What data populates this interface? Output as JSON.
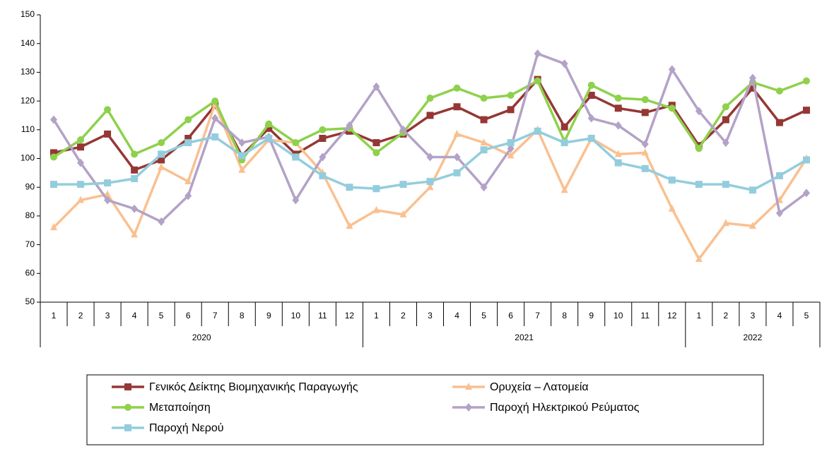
{
  "chart_data": {
    "type": "line",
    "category_groups": [
      {
        "label": "2020",
        "categories": [
          "1",
          "2",
          "3",
          "4",
          "5",
          "6",
          "7",
          "8",
          "9",
          "10",
          "11",
          "12"
        ]
      },
      {
        "label": "2021",
        "categories": [
          "1",
          "2",
          "3",
          "4",
          "5",
          "6",
          "7",
          "8",
          "9",
          "10",
          "11",
          "12"
        ]
      },
      {
        "label": "2022",
        "categories": [
          "1",
          "2",
          "3",
          "4",
          "5"
        ]
      }
    ],
    "ylim": [
      50,
      150
    ],
    "yticks": [
      50,
      60,
      70,
      80,
      90,
      100,
      110,
      120,
      130,
      140,
      150
    ],
    "series": [
      {
        "name": "Γενικός Δείκτης Βιομηχανικής Παραγωγής",
        "color": "#953735",
        "marker": "square",
        "values": [
          102,
          104,
          108.5,
          96,
          99.5,
          107,
          118.5,
          101,
          110.5,
          101.5,
          107,
          109.5,
          105.5,
          108.5,
          115,
          118,
          113.5,
          117,
          127.5,
          111,
          122,
          117.5,
          116,
          118.5,
          104.5,
          113.5,
          124.5,
          112.5,
          116.8
        ]
      },
      {
        "name": "Ορυχεία – Λατομεία",
        "color": "#fac090",
        "marker": "triangle",
        "values": [
          76,
          85.5,
          87.5,
          73.5,
          97,
          92,
          119,
          96,
          106.5,
          105.5,
          95,
          76.5,
          82,
          80.5,
          90,
          108.5,
          105.5,
          101,
          110,
          89,
          107,
          101.5,
          102,
          82.5,
          65,
          77.5,
          76.5,
          85.5,
          100
        ]
      },
      {
        "name": "Μεταποίηση",
        "color": "#8ed14b",
        "marker": "circle",
        "values": [
          100.5,
          106.5,
          117,
          101.5,
          105.5,
          113.5,
          120,
          99.5,
          112,
          105.5,
          110,
          110.5,
          102,
          109,
          121,
          124.5,
          121,
          122,
          127,
          106,
          125.5,
          121,
          120.5,
          117.5,
          103.5,
          118,
          126.5,
          123.5,
          127
        ]
      },
      {
        "name": "Παροχή Ηλεκτρικού Ρεύματος",
        "color": "#b3a2c7",
        "marker": "diamond",
        "values": [
          113.5,
          98.5,
          85.5,
          82.5,
          78,
          87,
          114,
          105.5,
          107.5,
          85.5,
          100.5,
          111.5,
          125,
          110,
          100.5,
          100.5,
          90,
          103.5,
          136.5,
          133,
          114,
          111.5,
          105,
          131,
          116.5,
          105.5,
          128,
          81,
          88
        ]
      },
      {
        "name": "Παροχή Νερού",
        "color": "#93cddd",
        "marker": "square",
        "values": [
          91,
          91,
          91.5,
          93,
          101.5,
          105.5,
          107.5,
          101,
          107,
          100.5,
          94,
          90,
          89.5,
          91,
          92,
          95,
          103,
          105.5,
          109.5,
          105.5,
          107,
          98.5,
          96.5,
          92.5,
          91,
          91,
          89,
          94,
          99.5
        ]
      }
    ]
  }
}
